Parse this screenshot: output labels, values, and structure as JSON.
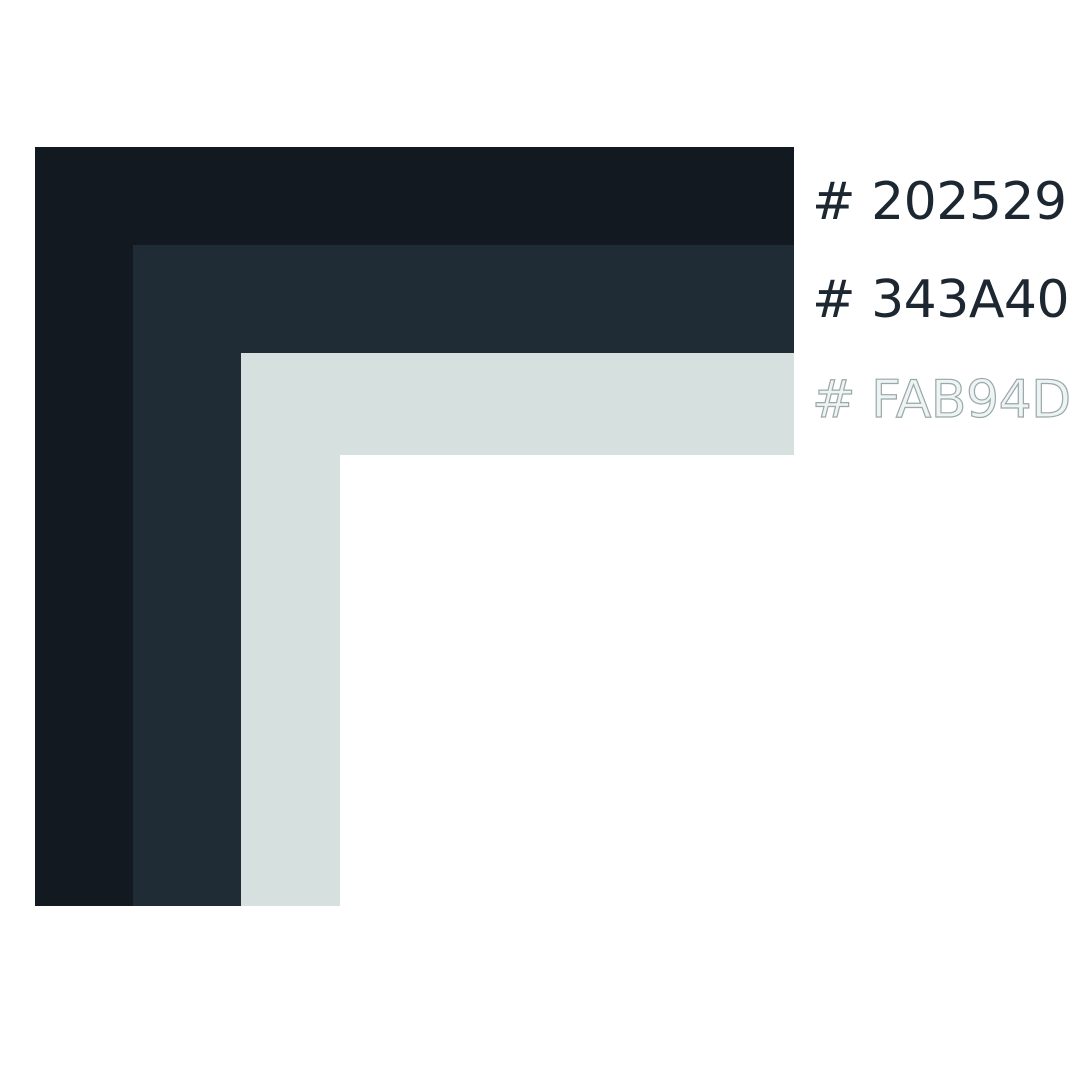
{
  "palette": {
    "swatches": [
      {
        "label": "# 202529",
        "fill": "#121920"
      },
      {
        "label": "# 343A40",
        "fill": "#1f2c36"
      },
      {
        "label": "# FAB94D",
        "fill": "#d5e0df"
      }
    ]
  }
}
